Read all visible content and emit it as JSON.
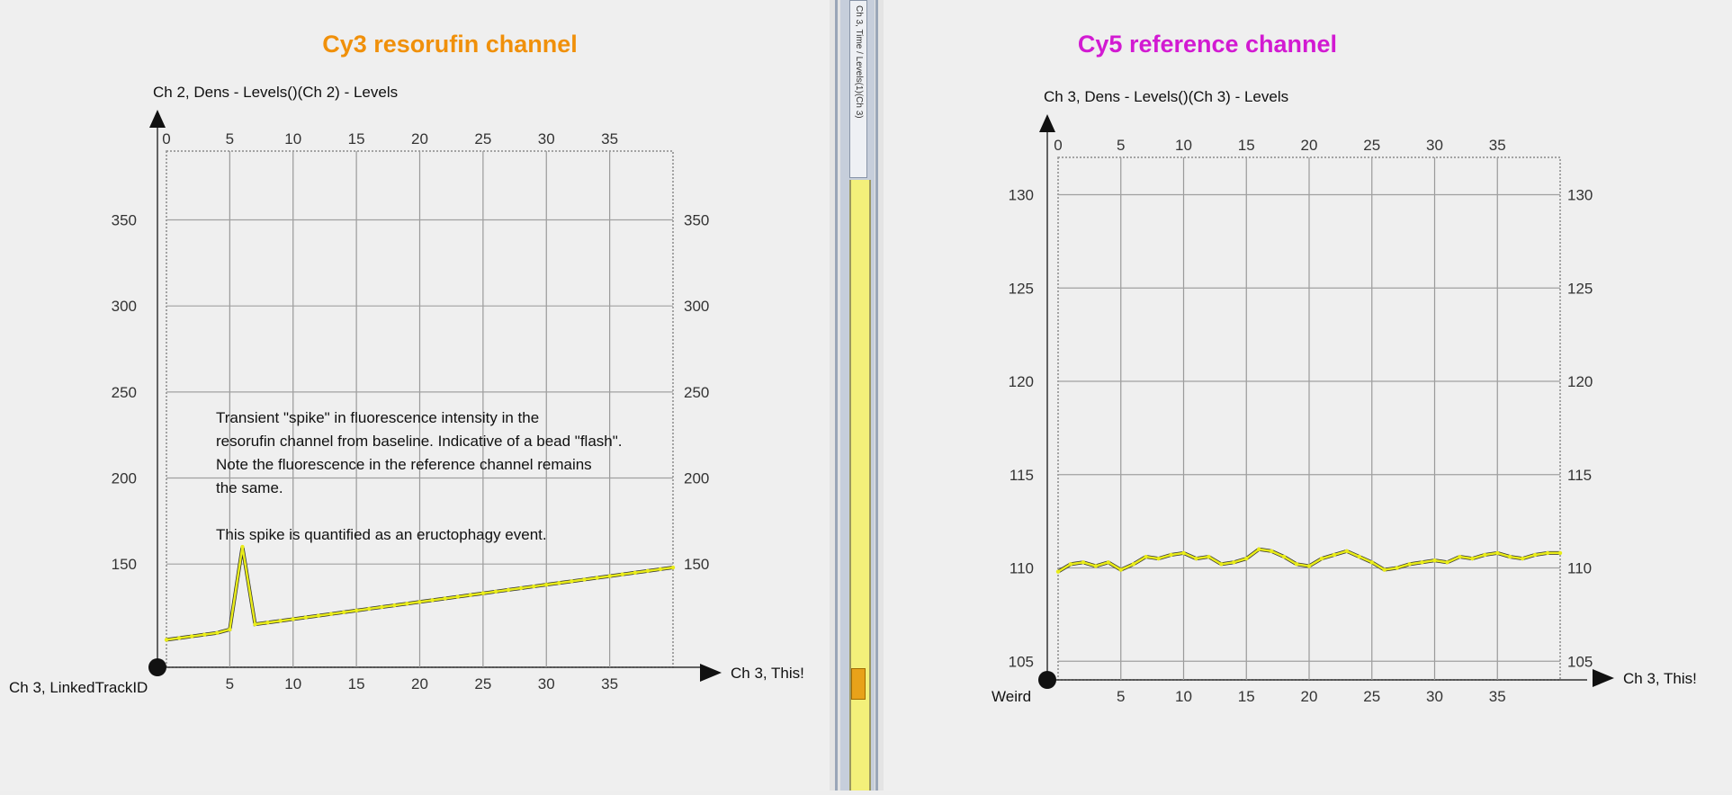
{
  "divider": {
    "label": "Ch 3, Time / Levels(1)(Ch 3)"
  },
  "chart_data": [
    {
      "type": "line",
      "title": "Cy3 resorufin channel",
      "title_color": "#f0900a",
      "y_axis_label": "Ch 2, Dens - Levels()(Ch 2) - Levels",
      "x_axis_label_right": "Ch 3, This!",
      "x_axis_label_left": "Ch 3, LinkedTrackID",
      "xlim": [
        0,
        40
      ],
      "ylim": [
        90,
        390
      ],
      "x_ticks_top": [
        "0",
        "5",
        "10",
        "15",
        "20",
        "25",
        "30",
        "35"
      ],
      "x_ticks_bottom": [
        "5",
        "10",
        "15",
        "20",
        "25",
        "30",
        "35"
      ],
      "y_ticks_left": [
        "150",
        "200",
        "250",
        "300",
        "350"
      ],
      "y_ticks_right": [
        "150",
        "200",
        "250",
        "300",
        "350"
      ],
      "grid": true,
      "annotation": [
        "Transient \"spike\" in fluorescence intensity in the",
        "resorufin channel from baseline. Indicative of a bead \"flash\".",
        "Note the fluorescence in the reference channel remains",
        "the same.",
        "",
        "This spike is quantified as an eructophagy event."
      ],
      "series": [
        {
          "color": "#e9ec1a",
          "x": [
            0,
            1,
            2,
            3,
            4,
            5,
            6,
            7,
            8,
            9,
            10,
            11,
            12,
            13,
            14,
            15,
            16,
            17,
            18,
            19,
            20,
            21,
            22,
            23,
            24,
            25,
            26,
            27,
            28,
            29,
            30,
            31,
            32,
            33,
            34,
            35,
            36,
            37,
            38,
            39,
            40
          ],
          "y": [
            106,
            107,
            108,
            109,
            110,
            112,
            160,
            115,
            116,
            117,
            118,
            119,
            120,
            121,
            122,
            123,
            124,
            125,
            126,
            127,
            128,
            129,
            130,
            131,
            132,
            133,
            134,
            135,
            136,
            137,
            138,
            139,
            140,
            141,
            142,
            143,
            144,
            145,
            146,
            147,
            148
          ]
        }
      ]
    },
    {
      "type": "line",
      "title": "Cy5 reference channel",
      "title_color": "#d21ad2",
      "y_axis_label": "Ch 3, Dens - Levels()(Ch 3) - Levels",
      "x_axis_label_right": "Ch 3, This!",
      "x_axis_label_left": "Weird",
      "xlim": [
        0,
        40
      ],
      "ylim": [
        104,
        132
      ],
      "x_ticks_top": [
        "0",
        "5",
        "10",
        "15",
        "20",
        "25",
        "30",
        "35"
      ],
      "x_ticks_bottom": [
        "5",
        "10",
        "15",
        "20",
        "25",
        "30",
        "35"
      ],
      "y_ticks_left": [
        "105",
        "110",
        "115",
        "120",
        "125",
        "130"
      ],
      "y_ticks_right": [
        "105",
        "110",
        "115",
        "120",
        "125",
        "130"
      ],
      "grid": true,
      "annotation": [],
      "series": [
        {
          "color": "#e9ec1a",
          "x": [
            0,
            1,
            2,
            3,
            4,
            5,
            6,
            7,
            8,
            9,
            10,
            11,
            12,
            13,
            14,
            15,
            16,
            17,
            18,
            19,
            20,
            21,
            22,
            23,
            24,
            25,
            26,
            27,
            28,
            29,
            30,
            31,
            32,
            33,
            34,
            35,
            36,
            37,
            38,
            39,
            40
          ],
          "y": [
            109.8,
            110.2,
            110.3,
            110.1,
            110.3,
            109.9,
            110.2,
            110.6,
            110.5,
            110.7,
            110.8,
            110.5,
            110.6,
            110.2,
            110.3,
            110.5,
            111.0,
            110.9,
            110.6,
            110.2,
            110.1,
            110.5,
            110.7,
            110.9,
            110.6,
            110.3,
            109.9,
            110.0,
            110.2,
            110.3,
            110.4,
            110.3,
            110.6,
            110.5,
            110.7,
            110.8,
            110.6,
            110.5,
            110.7,
            110.8,
            110.8
          ]
        }
      ]
    }
  ]
}
